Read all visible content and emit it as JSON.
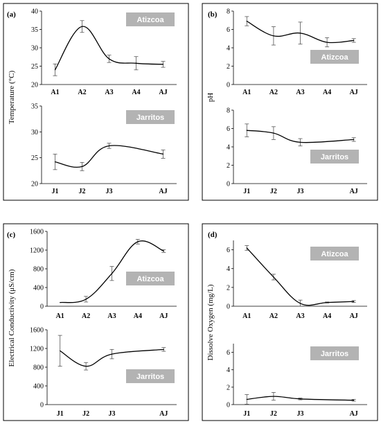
{
  "chart_data": [
    {
      "type": "line",
      "panel_label": "(a)",
      "ylabel": "Temperature  (°C)",
      "subplots": [
        {
          "site": "Atizcoa",
          "categories": [
            "A1",
            "A2",
            "A3",
            "A4",
            "AJ"
          ],
          "values": [
            24.0,
            35.8,
            27.0,
            25.8,
            25.5
          ],
          "errors": [
            1.6,
            1.6,
            1.0,
            1.8,
            0.8
          ],
          "ylim": [
            20,
            40
          ],
          "yticks": [
            20,
            25,
            30,
            35,
            40
          ]
        },
        {
          "site": "Jarritos",
          "categories": [
            "J1",
            "J2",
            "J3",
            "AJ"
          ],
          "x": [
            1,
            2,
            3,
            5
          ],
          "values": [
            24.2,
            23.3,
            27.3,
            25.7
          ],
          "errors": [
            1.5,
            0.8,
            0.5,
            0.8
          ],
          "ylim": [
            20,
            35
          ],
          "yticks": [
            20,
            25,
            30,
            35
          ]
        }
      ]
    },
    {
      "type": "line",
      "panel_label": "(b)",
      "ylabel": "pH",
      "subplots": [
        {
          "site": "Atizcoa",
          "categories": [
            "A1",
            "A2",
            "A3",
            "A4",
            "AJ"
          ],
          "values": [
            6.9,
            5.3,
            5.6,
            4.6,
            4.8
          ],
          "errors": [
            0.5,
            1.0,
            1.2,
            0.5,
            0.2
          ],
          "ylim": [
            0,
            8
          ],
          "yticks": [
            0,
            2,
            4,
            6,
            8
          ]
        },
        {
          "site": "Jarritos",
          "categories": [
            "J1",
            "J2",
            "J3",
            "AJ"
          ],
          "x": [
            1,
            2,
            3,
            5
          ],
          "values": [
            5.8,
            5.5,
            4.5,
            4.8
          ],
          "errors": [
            0.7,
            0.7,
            0.4,
            0.2
          ],
          "ylim": [
            0,
            8
          ],
          "yticks": [
            0,
            2,
            4,
            6,
            8
          ]
        }
      ]
    },
    {
      "type": "line",
      "panel_label": "(c)",
      "ylabel": "Electrical Conductivity  (μS/cm)",
      "subplots": [
        {
          "site": "Atizcoa",
          "categories": [
            "A1",
            "A2",
            "A3",
            "A4",
            "AJ"
          ],
          "values": [
            80,
            150,
            700,
            1380,
            1180
          ],
          "errors": [
            0,
            60,
            150,
            50,
            30
          ],
          "ylim": [
            0,
            1600
          ],
          "yticks": [
            0,
            400,
            800,
            1200,
            1600
          ]
        },
        {
          "site": "Jarritos",
          "categories": [
            "J1",
            "J2",
            "J3",
            "AJ"
          ],
          "x": [
            1,
            2,
            3,
            5
          ],
          "values": [
            1150,
            820,
            1080,
            1180
          ],
          "errors": [
            330,
            80,
            100,
            40
          ],
          "ylim": [
            0,
            1600
          ],
          "yticks": [
            0,
            400,
            800,
            1200,
            1600
          ]
        }
      ]
    },
    {
      "type": "line",
      "panel_label": "(d)",
      "ylabel": "Dissolve  Oxygen  (mg/L)",
      "subplots": [
        {
          "site": "Atizcoa",
          "categories": [
            "A1",
            "A2",
            "A3",
            "A4",
            "AJ"
          ],
          "values": [
            6.2,
            3.1,
            0.3,
            0.4,
            0.5
          ],
          "errors": [
            0.25,
            0.3,
            0.35,
            0.05,
            0.1
          ],
          "ylim": [
            0,
            7
          ],
          "yticks": [
            0,
            2,
            4,
            6
          ]
        },
        {
          "site": "Jarritos",
          "categories": [
            "J1",
            "J2",
            "J3",
            "AJ"
          ],
          "x": [
            1,
            2,
            3,
            5
          ],
          "values": [
            0.6,
            0.95,
            0.65,
            0.5
          ],
          "errors": [
            0.55,
            0.45,
            0.1,
            0.1
          ],
          "ylim": [
            0,
            7
          ],
          "yticks": [
            0,
            2,
            4,
            6
          ]
        }
      ]
    }
  ]
}
